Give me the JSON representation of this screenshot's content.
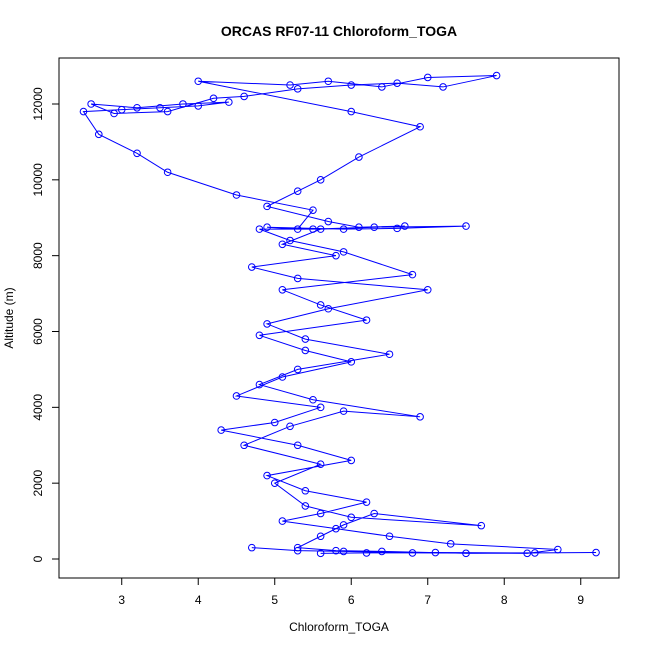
{
  "chart_data": {
    "type": "line",
    "title": "ORCAS RF07-11 Chloroform_TOGA",
    "xlabel": "Chloroform_TOGA",
    "ylabel": "Altitude (m)",
    "color": "#0000ff",
    "marker": "circle",
    "x": [
      5.6,
      6.2,
      7.1,
      8.4,
      9.2,
      7.5,
      6.4,
      5.8,
      5.3,
      5.6,
      5.9,
      6.3,
      7.7,
      6.0,
      5.4,
      5.0,
      5.6,
      4.6,
      5.2,
      5.9,
      6.9,
      5.5,
      4.8,
      5.3,
      6.5,
      5.4,
      4.9,
      5.7,
      7.0,
      5.3,
      4.7,
      5.8,
      5.1,
      5.6,
      6.3,
      7.5,
      6.6,
      5.9,
      4.9,
      5.3,
      5.5,
      4.5,
      3.6,
      3.2,
      2.7,
      2.5,
      3.0,
      3.5,
      4.0,
      4.4,
      3.8,
      3.2,
      2.6,
      2.9,
      3.6,
      4.2,
      4.6,
      5.3,
      6.0,
      6.6,
      7.2,
      7.9,
      7.0,
      6.4,
      5.7,
      5.2,
      4.0,
      6.0,
      6.9,
      6.1,
      5.6,
      5.3,
      4.9,
      5.7,
      6.1,
      6.7,
      5.5,
      4.8,
      5.2,
      5.9,
      6.8,
      5.1,
      5.6,
      6.2,
      4.8,
      5.4,
      6.0,
      5.1,
      4.5,
      5.6,
      5.0,
      4.3,
      5.3,
      6.0,
      4.9,
      5.4,
      6.2,
      5.6,
      5.1,
      5.8,
      6.5,
      7.3,
      8.7,
      8.3,
      6.8,
      5.9,
      5.3,
      4.7
    ],
    "values": [
      150,
      160,
      170,
      160,
      170,
      150,
      200,
      220,
      300,
      600,
      900,
      1200,
      880,
      1100,
      1400,
      2000,
      2500,
      3000,
      3500,
      3900,
      3750,
      4200,
      4600,
      5000,
      5400,
      5800,
      6200,
      6600,
      7100,
      7400,
      7700,
      8000,
      8300,
      8700,
      8750,
      8780,
      8720,
      8700,
      8750,
      8700,
      9200,
      9600,
      10200,
      10700,
      11200,
      11800,
      11850,
      11900,
      11950,
      12050,
      12000,
      11900,
      12000,
      11750,
      11800,
      12150,
      12200,
      12400,
      12500,
      12550,
      12450,
      12750,
      12700,
      12450,
      12600,
      12500,
      12600,
      11800,
      11400,
      10600,
      10000,
      9700,
      9300,
      8900,
      8750,
      8780,
      8700,
      8700,
      8400,
      8100,
      7500,
      7100,
      6700,
      6300,
      5900,
      5500,
      5200,
      4800,
      4300,
      4000,
      3600,
      3400,
      3000,
      2600,
      2200,
      1800,
      1500,
      1200,
      1000,
      800,
      600,
      400,
      250,
      150,
      160,
      200,
      220,
      300
    ],
    "xlim": [
      2.18,
      9.5
    ],
    "ylim": [
      -501,
      13213
    ],
    "xticks": [
      3,
      4,
      5,
      6,
      7,
      8,
      9
    ],
    "yticks": [
      0,
      2000,
      4000,
      6000,
      8000,
      10000,
      12000
    ]
  }
}
